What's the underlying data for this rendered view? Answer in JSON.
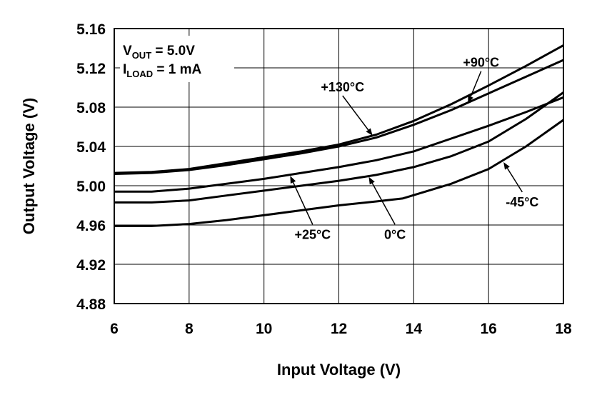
{
  "chart_data": {
    "type": "line",
    "xlabel": "Input Voltage (V)",
    "ylabel": "Output Voltage (V)",
    "xlim": [
      6,
      18
    ],
    "ylim": [
      4.88,
      5.16
    ],
    "xticks": [
      6,
      8,
      10,
      12,
      14,
      16,
      18
    ],
    "xtick_labels": [
      "6",
      "8",
      "10",
      "12",
      "14",
      "16",
      "18"
    ],
    "yticks": [
      4.88,
      4.92,
      4.96,
      5.0,
      5.04,
      5.08,
      5.12,
      5.16
    ],
    "ytick_labels": [
      "4.88",
      "4.92",
      "4.96",
      "5.00",
      "5.04",
      "5.08",
      "5.12",
      "5.16"
    ],
    "grid": true,
    "legend": "none",
    "conditions": [
      {
        "main": "V",
        "sub": "OUT",
        "rest": " = 5.0V"
      },
      {
        "main": "I",
        "sub": "LOAD",
        "rest": " = 1 mA"
      }
    ],
    "series": [
      {
        "name": "+130°C",
        "x": [
          6,
          7,
          8,
          9,
          10,
          11,
          12,
          13,
          14,
          15,
          16,
          17,
          18
        ],
        "y": [
          5.013,
          5.014,
          5.017,
          5.023,
          5.029,
          5.035,
          5.042,
          5.052,
          5.066,
          5.083,
          5.102,
          5.122,
          5.143
        ]
      },
      {
        "name": "+90°C",
        "x": [
          6,
          7,
          8,
          9,
          10,
          11,
          12,
          13,
          14,
          15,
          16,
          17,
          18
        ],
        "y": [
          5.012,
          5.013,
          5.016,
          5.021,
          5.027,
          5.033,
          5.04,
          5.049,
          5.062,
          5.077,
          5.094,
          5.111,
          5.128
        ]
      },
      {
        "name": "+25°C",
        "x": [
          6,
          7,
          8,
          9,
          10,
          11,
          12,
          13,
          14,
          15,
          16,
          17,
          18
        ],
        "y": [
          4.994,
          4.994,
          4.997,
          5.002,
          5.007,
          5.013,
          5.019,
          5.026,
          5.035,
          5.048,
          5.061,
          5.075,
          5.09
        ]
      },
      {
        "name": "0°C",
        "x": [
          6,
          7,
          8,
          9,
          10,
          11,
          12,
          13,
          14,
          15,
          16,
          17,
          18
        ],
        "y": [
          4.983,
          4.983,
          4.985,
          4.99,
          4.995,
          5.0,
          5.005,
          5.011,
          5.019,
          5.03,
          5.045,
          5.068,
          5.095
        ]
      },
      {
        "name": "-45°C",
        "x": [
          6,
          7,
          8,
          9,
          10,
          11,
          12,
          13,
          13.7,
          15,
          16,
          17,
          18
        ],
        "y": [
          4.959,
          4.959,
          4.961,
          4.965,
          4.97,
          4.975,
          4.98,
          4.984,
          4.987,
          5.002,
          5.017,
          5.04,
          5.067
        ]
      }
    ],
    "annotations": [
      {
        "text": "+130°C",
        "series": "+130°C",
        "x": 12.9,
        "y": 5.051,
        "label_x": 12.1,
        "label_y": 5.096
      },
      {
        "text": "+90°C",
        "series": "+90°C",
        "x": 15.45,
        "y": 5.084,
        "label_x": 15.8,
        "label_y": 5.121
      },
      {
        "text": "+25°C",
        "series": "+25°C",
        "x": 10.7,
        "y": 5.01,
        "label_x": 11.3,
        "label_y": 4.946
      },
      {
        "text": "0°C",
        "series": "0°C",
        "x": 12.8,
        "y": 5.009,
        "label_x": 13.5,
        "label_y": 4.946
      },
      {
        "text": "-45°C",
        "series": "-45°C",
        "x": 16.4,
        "y": 5.024,
        "label_x": 16.9,
        "label_y": 4.979
      }
    ]
  }
}
